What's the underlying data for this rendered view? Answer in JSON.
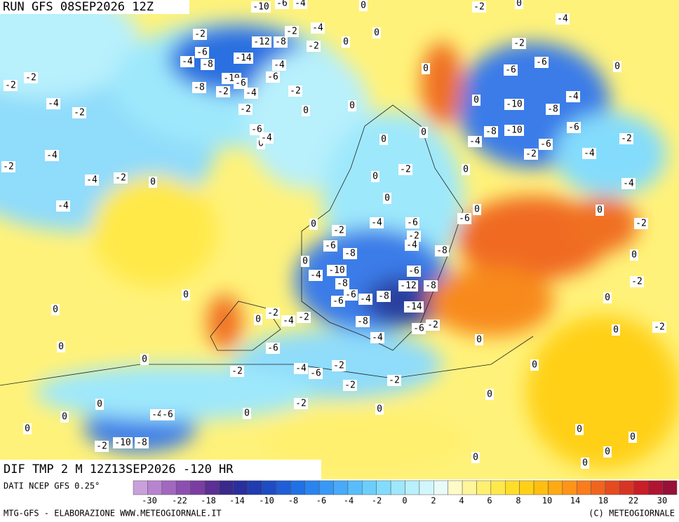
{
  "header": {
    "run": "RUN GFS 08SEP2026 12Z"
  },
  "map": {
    "title": "DIF TMP 2 M 12Z13SEP2026 -120 HR",
    "labels": [
      -10,
      -6,
      -4,
      0,
      -2,
      0,
      -4,
      -2,
      -12,
      -8,
      -2,
      -4,
      0,
      0,
      -2,
      -6,
      -4,
      -8,
      -14,
      -4,
      -2,
      -6,
      -6,
      0,
      -2,
      -2,
      -10,
      -6,
      -6,
      -8,
      -2,
      -4,
      -2,
      0,
      -4,
      -2,
      -2,
      0,
      0,
      0,
      -10,
      -8,
      -4,
      -6,
      0,
      -4,
      -8,
      -10,
      -6,
      0,
      0,
      -4,
      -2,
      -6,
      -2,
      -4,
      -4,
      -2,
      -2,
      0,
      -4,
      -2,
      0,
      0,
      -4,
      0,
      -4,
      0,
      -2,
      0,
      -2,
      -4,
      -6,
      -6,
      -2,
      -4,
      -6,
      -8,
      -8,
      0,
      0,
      -10,
      -4,
      -6,
      -8,
      -12,
      -8,
      -2,
      0,
      -6,
      -4,
      -8,
      -6,
      -14,
      0,
      0,
      0,
      -2,
      -4,
      -2,
      0,
      -8,
      -2,
      -6,
      -2,
      0,
      -4,
      0,
      0,
      -6,
      0,
      -4,
      -2,
      -6,
      -2,
      0,
      -2,
      -2,
      -2,
      0,
      0,
      -4,
      -6,
      0,
      0,
      0,
      0,
      -10,
      -8,
      -2,
      0,
      0,
      0,
      0,
      0
    ]
  },
  "legend": {
    "source": "DATI NCEP GFS 0.25°",
    "colors": [
      "#c9a0dc",
      "#b784cf",
      "#a268c0",
      "#8c4fb0",
      "#7a3ea3",
      "#5b2f93",
      "#3a2a8c",
      "#2a2f9e",
      "#1f3cb0",
      "#1e4cc4",
      "#1f5ed6",
      "#2170e6",
      "#2a84f0",
      "#3898f5",
      "#48aaf8",
      "#58bdfa",
      "#6ccefb",
      "#84dcfc",
      "#9ee8fc",
      "#b8f0fc",
      "#d2f6fb",
      "#e8fbf8",
      "#fffbc8",
      "#fff59a",
      "#fff070",
      "#ffe94a",
      "#ffde2a",
      "#ffd016",
      "#ffbe10",
      "#ffaa12",
      "#ff9418",
      "#fa7c1c",
      "#f0641e",
      "#e44c20",
      "#d83424",
      "#c81e28",
      "#b01430",
      "#961037"
    ],
    "ticks": [
      -30,
      -22,
      -18,
      -14,
      -10,
      -8,
      -6,
      -4,
      -2,
      0,
      2,
      4,
      6,
      8,
      10,
      14,
      18,
      22,
      30
    ]
  },
  "footer": {
    "credit": "MTG-GFS - ELABORAZIONE WWW.METEOGIORNALE.IT",
    "copyright": "(C) METEOGIORNALE"
  }
}
